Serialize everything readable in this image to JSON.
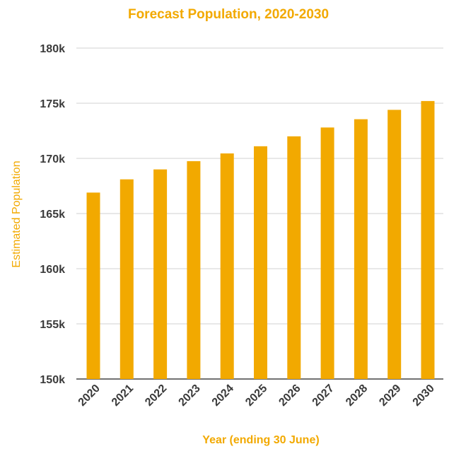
{
  "chart_data": {
    "type": "bar",
    "title": "Forecast Population, 2020-2030",
    "xlabel": "Year (ending 30 June)",
    "ylabel": "Estimated Population",
    "categories": [
      "2020",
      "2021",
      "2022",
      "2023",
      "2024",
      "2025",
      "2026",
      "2027",
      "2028",
      "2029",
      "2030"
    ],
    "values": [
      166900,
      168100,
      169000,
      169750,
      170450,
      171100,
      172000,
      172800,
      173550,
      174400,
      175200
    ],
    "ylim": [
      150000,
      180000
    ],
    "yticks": [
      150000,
      155000,
      160000,
      165000,
      170000,
      175000,
      180000
    ],
    "ytick_labels": [
      "150k",
      "155k",
      "160k",
      "165k",
      "170k",
      "175k",
      "180k"
    ],
    "grid": true,
    "legend": "none",
    "colors": {
      "bar": "#F2A900",
      "title": "#F2A900",
      "axis_label": "#F2A900",
      "gridline": "#d0d0d0",
      "tick_text": "#3a3a3a"
    }
  }
}
